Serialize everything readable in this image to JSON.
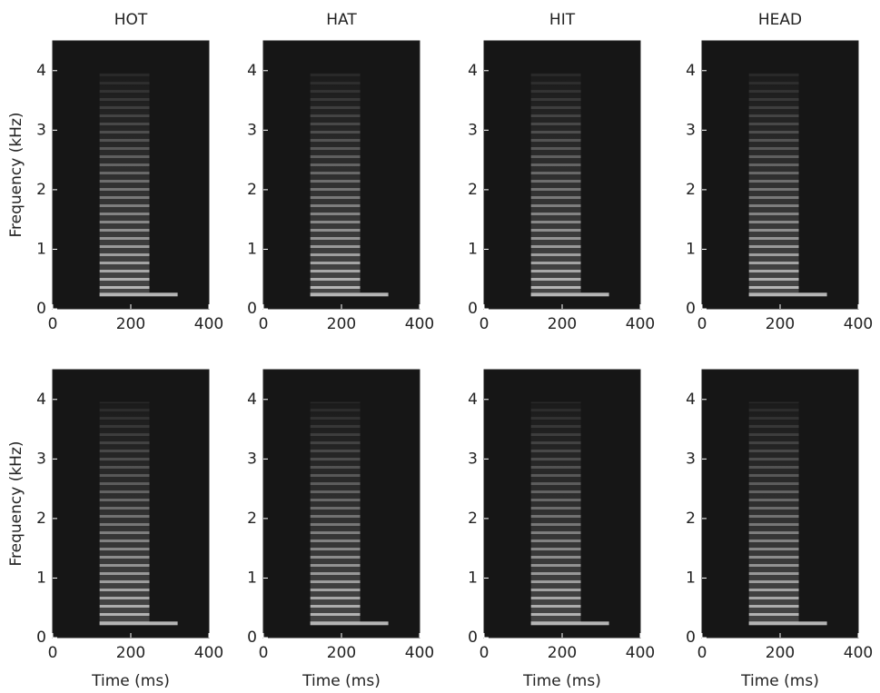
{
  "chart_data": [
    {
      "type": "spectrogram",
      "title": "HOT",
      "ylabel": "Frequency (kHz)",
      "xlim": [
        0,
        400
      ],
      "ylim": [
        0,
        4.5
      ],
      "xticks": [
        0,
        200,
        400
      ],
      "yticks": [
        0,
        1,
        2,
        3,
        4
      ]
    },
    {
      "type": "spectrogram",
      "title": "HAT",
      "xlim": [
        0,
        400
      ],
      "ylim": [
        0,
        4.5
      ],
      "xticks": [
        0,
        200,
        400
      ],
      "yticks": [
        0,
        1,
        2,
        3,
        4
      ]
    },
    {
      "type": "spectrogram",
      "title": "HIT",
      "xlim": [
        0,
        400
      ],
      "ylim": [
        0,
        4.5
      ],
      "xticks": [
        0,
        200,
        400
      ],
      "yticks": [
        0,
        1,
        2,
        3,
        4
      ]
    },
    {
      "type": "spectrogram",
      "title": "HEAD",
      "xlim": [
        0,
        400
      ],
      "ylim": [
        0,
        4.5
      ],
      "xticks": [
        0,
        200,
        400
      ],
      "yticks": [
        0,
        1,
        2,
        3,
        4
      ]
    },
    {
      "type": "spectrogram",
      "ylabel": "Frequency (kHz)",
      "xlabel": "Time (ms)",
      "xlim": [
        0,
        400
      ],
      "ylim": [
        0,
        4.5
      ],
      "xticks": [
        0,
        200,
        400
      ],
      "yticks": [
        0,
        1,
        2,
        3,
        4
      ]
    },
    {
      "type": "spectrogram",
      "xlabel": "Time (ms)",
      "xlim": [
        0,
        400
      ],
      "ylim": [
        0,
        4.5
      ],
      "xticks": [
        0,
        200,
        400
      ],
      "yticks": [
        0,
        1,
        2,
        3,
        4
      ]
    },
    {
      "type": "spectrogram",
      "xlabel": "Time (ms)",
      "xlim": [
        0,
        400
      ],
      "ylim": [
        0,
        4.5
      ],
      "xticks": [
        0,
        200,
        400
      ],
      "yticks": [
        0,
        1,
        2,
        3,
        4
      ]
    },
    {
      "type": "spectrogram",
      "xlabel": "Time (ms)",
      "xlim": [
        0,
        400
      ],
      "ylim": [
        0,
        4.5
      ],
      "xticks": [
        0,
        200,
        400
      ],
      "yticks": [
        0,
        1,
        2,
        3,
        4
      ]
    }
  ]
}
